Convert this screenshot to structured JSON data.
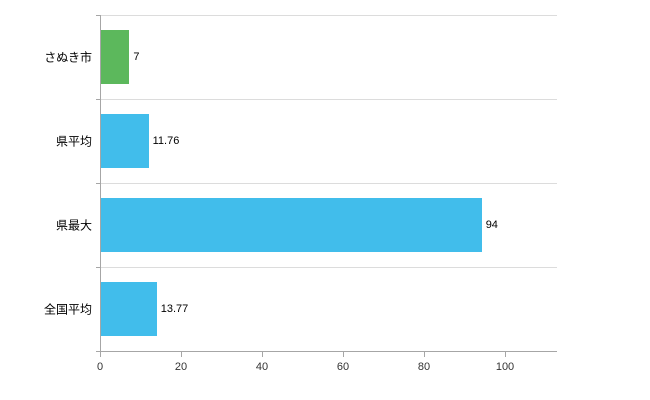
{
  "chart_data": {
    "type": "bar",
    "orientation": "horizontal",
    "title": "",
    "xlabel": "",
    "ylabel": "",
    "categories": [
      "さぬき市",
      "県平均",
      "県最大",
      "全国平均"
    ],
    "values": [
      7,
      11.76,
      94,
      13.77
    ],
    "value_labels": [
      "7",
      "11.76",
      "94",
      "13.77"
    ],
    "series": [
      {
        "name": "",
        "values": [
          7,
          11.76,
          94,
          13.77
        ]
      }
    ],
    "x_ticks": [
      0,
      20,
      40,
      60,
      80,
      100
    ],
    "x_tick_labels": [
      "0",
      "20",
      "40",
      "60",
      "80",
      "100"
    ],
    "xlim": [
      0,
      113
    ],
    "grid": "horizontal-category-separators",
    "legend": "none",
    "bar_colors": [
      "#5cb85c",
      "#41bdeb",
      "#41bdeb",
      "#41bdeb"
    ]
  },
  "colors": {
    "background": "#ffffff",
    "axis": "#a6a6a6",
    "gridline": "#dcdcdc",
    "text": "#000000",
    "tick_text": "#333333",
    "green_bar": "#5cb85c",
    "blue_bar": "#41bdeb"
  }
}
